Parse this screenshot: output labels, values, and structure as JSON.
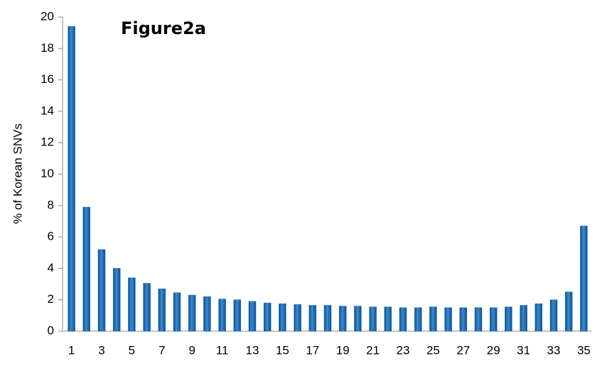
{
  "chart_data": {
    "type": "bar",
    "title": "Figure2a",
    "y_label": "% of Korean SNVs",
    "categories": [
      "1",
      null,
      "3",
      null,
      "5",
      null,
      "7",
      null,
      "9",
      null,
      "11",
      null,
      "13",
      null,
      "15",
      null,
      "17",
      null,
      "19",
      null,
      "21",
      null,
      "23",
      null,
      "25",
      null,
      "27",
      null,
      "29",
      null,
      "31",
      null,
      "33",
      null,
      "35"
    ],
    "values": [
      19.4,
      7.9,
      5.2,
      4.0,
      3.4,
      3.05,
      2.7,
      2.45,
      2.3,
      2.2,
      2.05,
      2.0,
      1.9,
      1.8,
      1.75,
      1.7,
      1.65,
      1.65,
      1.6,
      1.6,
      1.55,
      1.55,
      1.5,
      1.5,
      1.55,
      1.5,
      1.5,
      1.5,
      1.5,
      1.55,
      1.65,
      1.75,
      2.0,
      2.5,
      6.7
    ],
    "color": "#1f6fb5",
    "ylim": [
      0,
      20
    ],
    "yticks": [
      0,
      2,
      4,
      6,
      8,
      10,
      12,
      14,
      16,
      18,
      20
    ],
    "grid": false
  }
}
